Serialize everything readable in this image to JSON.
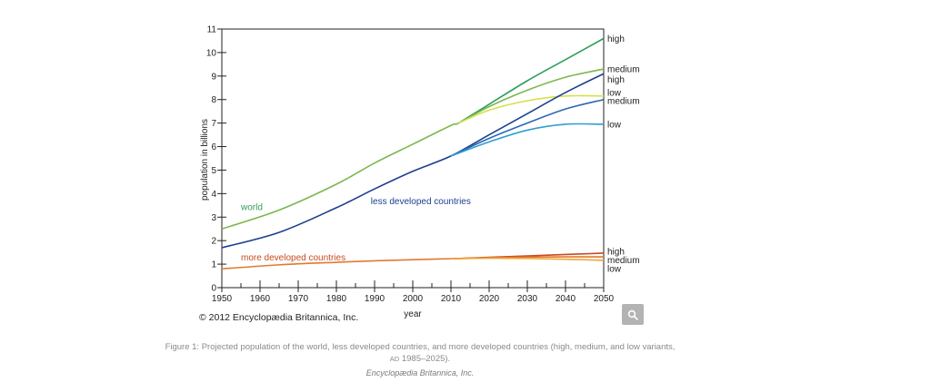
{
  "chart_data": {
    "type": "line",
    "title": "",
    "xlabel": "year",
    "ylabel": "population in billions",
    "xlim": [
      1950,
      2050
    ],
    "ylim": [
      0,
      11
    ],
    "x_ticks": [
      1950,
      1960,
      1970,
      1980,
      1990,
      2000,
      2010,
      2020,
      2030,
      2040,
      2050
    ],
    "y_ticks": [
      0,
      1,
      2,
      3,
      4,
      5,
      6,
      7,
      8,
      9,
      10,
      11
    ],
    "series": [
      {
        "name": "world (high)",
        "group": "world",
        "variant": "high",
        "color": "#2e9e5b",
        "x": [
          2012,
          2020,
          2030,
          2040,
          2050
        ],
        "y": [
          7.0,
          7.8,
          8.8,
          9.7,
          10.6
        ]
      },
      {
        "name": "world (medium)",
        "group": "world",
        "variant": "medium",
        "color": "#7ab84f",
        "x": [
          1950,
          1965,
          1980,
          1990,
          2000,
          2010,
          2012,
          2020,
          2030,
          2040,
          2050
        ],
        "y": [
          2.5,
          3.3,
          4.4,
          5.3,
          6.1,
          6.9,
          7.0,
          7.7,
          8.4,
          8.95,
          9.3
        ]
      },
      {
        "name": "world (low)",
        "group": "world",
        "variant": "low",
        "color": "#d6e04a",
        "x": [
          2012,
          2020,
          2030,
          2040,
          2050
        ],
        "y": [
          7.0,
          7.55,
          7.95,
          8.15,
          8.15
        ]
      },
      {
        "name": "less developed countries (high)",
        "group": "less developed countries",
        "variant": "high",
        "color": "#1d3f8f",
        "x": [
          1950,
          1965,
          1980,
          1990,
          2000,
          2010,
          2020,
          2030,
          2040,
          2050
        ],
        "y": [
          1.7,
          2.35,
          3.4,
          4.2,
          4.95,
          5.6,
          6.5,
          7.4,
          8.3,
          9.1
        ]
      },
      {
        "name": "less developed countries (medium)",
        "group": "less developed countries",
        "variant": "medium",
        "color": "#2a68b3",
        "x": [
          2010,
          2020,
          2030,
          2040,
          2050
        ],
        "y": [
          5.6,
          6.35,
          7.0,
          7.6,
          8.0
        ]
      },
      {
        "name": "less developed countries (low)",
        "group": "less developed countries",
        "variant": "low",
        "color": "#2f9fce",
        "x": [
          2010,
          2020,
          2030,
          2040,
          2050
        ],
        "y": [
          5.6,
          6.2,
          6.7,
          6.95,
          6.95
        ]
      },
      {
        "name": "more developed countries (high)",
        "group": "more developed countries",
        "variant": "high",
        "color": "#c94a1f",
        "x": [
          2010,
          2020,
          2030,
          2040,
          2050
        ],
        "y": [
          1.23,
          1.29,
          1.35,
          1.41,
          1.47
        ]
      },
      {
        "name": "more developed countries (medium)",
        "group": "more developed countries",
        "variant": "medium",
        "color": "#e07a2e",
        "x": [
          1950,
          1965,
          1980,
          1990,
          2000,
          2010,
          2020,
          2030,
          2040,
          2050
        ],
        "y": [
          0.8,
          0.97,
          1.08,
          1.14,
          1.19,
          1.23,
          1.27,
          1.3,
          1.31,
          1.31
        ]
      },
      {
        "name": "more developed countries (low)",
        "group": "more developed countries",
        "variant": "low",
        "color": "#f0a63a",
        "x": [
          2010,
          2020,
          2030,
          2040,
          2050
        ],
        "y": [
          1.23,
          1.25,
          1.24,
          1.21,
          1.16
        ]
      }
    ],
    "annotations": [
      {
        "text": "world",
        "x": 1955,
        "y": 3.3,
        "color": "#2e9e5b"
      },
      {
        "text": "less developed countries",
        "x": 1989,
        "y": 3.55,
        "color": "#1d3f8f"
      },
      {
        "text": "more developed countries",
        "x": 1955,
        "y": 1.15,
        "color": "#c94a1f"
      }
    ],
    "right_labels": [
      {
        "text": "high",
        "y": 10.6
      },
      {
        "text": "medium",
        "y": 9.3
      },
      {
        "text": "high",
        "y": 8.85
      },
      {
        "text": "low",
        "y": 8.3
      },
      {
        "text": "medium",
        "y": 7.95
      },
      {
        "text": "low",
        "y": 6.95
      },
      {
        "text": "high",
        "y": 1.55
      },
      {
        "text": "medium",
        "y": 1.18
      },
      {
        "text": "low",
        "y": 0.81
      }
    ]
  },
  "copyright": "© 2012 Encyclopædia Britannica, Inc.",
  "zoom_icon": "magnifier-icon",
  "caption_line1": "Figure 1: Projected population of the world, less developed countries, and more developed countries (high, medium, and low variants,",
  "caption_line2_ad": "AD",
  "caption_line2_rest": " 1985–2025).",
  "credit": "Encyclopædia Britannica, Inc."
}
